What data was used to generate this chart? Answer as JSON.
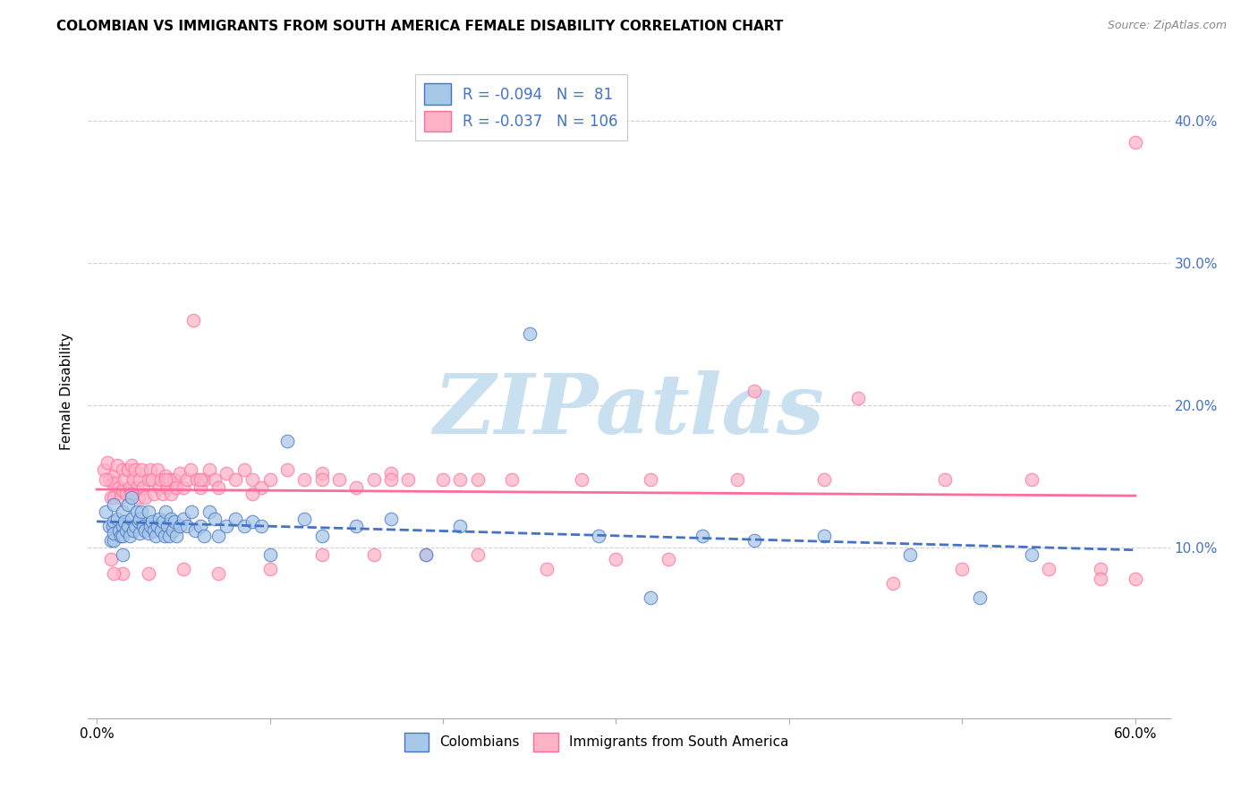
{
  "title": "COLOMBIAN VS IMMIGRANTS FROM SOUTH AMERICA FEMALE DISABILITY CORRELATION CHART",
  "source": "Source: ZipAtlas.com",
  "ylabel": "Female Disability",
  "xlim": [
    -0.005,
    0.62
  ],
  "ylim": [
    -0.02,
    0.44
  ],
  "yticks": [
    0.1,
    0.2,
    0.3,
    0.4
  ],
  "xtick_positions": [
    0.0,
    0.6
  ],
  "xtick_labels": [
    "0.0%",
    "60.0%"
  ],
  "ytick_labels": [
    "10.0%",
    "20.0%",
    "30.0%",
    "40.0%"
  ],
  "legend_labels": [
    "Colombians",
    "Immigrants from South America"
  ],
  "blue_color": "#A8C8E8",
  "pink_color": "#FFB3C6",
  "blue_edge_color": "#4472C4",
  "pink_edge_color": "#FF6B9D",
  "blue_line_color": "#4472C4",
  "pink_line_color": "#FF6B9D",
  "R_blue": -0.094,
  "N_blue": 81,
  "R_pink": -0.037,
  "N_pink": 106,
  "blue_scatter_x": [
    0.005,
    0.007,
    0.008,
    0.009,
    0.01,
    0.01,
    0.01,
    0.01,
    0.012,
    0.013,
    0.014,
    0.015,
    0.015,
    0.015,
    0.015,
    0.016,
    0.017,
    0.018,
    0.018,
    0.019,
    0.02,
    0.02,
    0.021,
    0.022,
    0.023,
    0.024,
    0.025,
    0.025,
    0.026,
    0.027,
    0.028,
    0.03,
    0.03,
    0.031,
    0.032,
    0.033,
    0.034,
    0.035,
    0.036,
    0.037,
    0.038,
    0.039,
    0.04,
    0.041,
    0.042,
    0.043,
    0.044,
    0.045,
    0.046,
    0.048,
    0.05,
    0.052,
    0.055,
    0.057,
    0.06,
    0.062,
    0.065,
    0.068,
    0.07,
    0.075,
    0.08,
    0.085,
    0.09,
    0.095,
    0.1,
    0.11,
    0.12,
    0.13,
    0.15,
    0.17,
    0.19,
    0.21,
    0.25,
    0.29,
    0.32,
    0.35,
    0.38,
    0.42,
    0.47,
    0.51,
    0.54
  ],
  "blue_scatter_y": [
    0.125,
    0.115,
    0.105,
    0.115,
    0.105,
    0.118,
    0.13,
    0.11,
    0.12,
    0.112,
    0.108,
    0.125,
    0.115,
    0.108,
    0.095,
    0.118,
    0.112,
    0.13,
    0.115,
    0.108,
    0.135,
    0.12,
    0.112,
    0.115,
    0.125,
    0.118,
    0.12,
    0.11,
    0.125,
    0.115,
    0.112,
    0.125,
    0.11,
    0.115,
    0.118,
    0.112,
    0.108,
    0.115,
    0.12,
    0.112,
    0.118,
    0.108,
    0.125,
    0.115,
    0.108,
    0.12,
    0.112,
    0.118,
    0.108,
    0.115,
    0.12,
    0.115,
    0.125,
    0.112,
    0.115,
    0.108,
    0.125,
    0.12,
    0.108,
    0.115,
    0.12,
    0.115,
    0.118,
    0.115,
    0.095,
    0.175,
    0.12,
    0.108,
    0.115,
    0.12,
    0.095,
    0.115,
    0.25,
    0.108,
    0.065,
    0.108,
    0.105,
    0.108,
    0.095,
    0.065,
    0.095
  ],
  "pink_scatter_x": [
    0.004,
    0.006,
    0.007,
    0.008,
    0.009,
    0.01,
    0.01,
    0.011,
    0.012,
    0.013,
    0.014,
    0.015,
    0.015,
    0.016,
    0.017,
    0.018,
    0.019,
    0.02,
    0.02,
    0.021,
    0.022,
    0.023,
    0.024,
    0.025,
    0.026,
    0.027,
    0.028,
    0.03,
    0.031,
    0.032,
    0.033,
    0.035,
    0.036,
    0.037,
    0.038,
    0.04,
    0.041,
    0.042,
    0.043,
    0.045,
    0.046,
    0.048,
    0.05,
    0.052,
    0.054,
    0.056,
    0.058,
    0.06,
    0.062,
    0.065,
    0.068,
    0.07,
    0.075,
    0.08,
    0.085,
    0.09,
    0.095,
    0.1,
    0.11,
    0.12,
    0.13,
    0.14,
    0.15,
    0.16,
    0.17,
    0.18,
    0.2,
    0.22,
    0.24,
    0.28,
    0.32,
    0.37,
    0.42,
    0.46,
    0.5,
    0.54,
    0.58,
    0.6,
    0.6,
    0.58,
    0.55,
    0.49,
    0.44,
    0.38,
    0.33,
    0.3,
    0.26,
    0.22,
    0.19,
    0.16,
    0.13,
    0.1,
    0.07,
    0.05,
    0.03,
    0.015,
    0.01,
    0.005,
    0.008,
    0.02,
    0.04,
    0.06,
    0.09,
    0.13,
    0.17,
    0.21
  ],
  "pink_scatter_y": [
    0.155,
    0.16,
    0.148,
    0.135,
    0.145,
    0.15,
    0.135,
    0.145,
    0.158,
    0.142,
    0.135,
    0.155,
    0.14,
    0.148,
    0.138,
    0.155,
    0.142,
    0.158,
    0.138,
    0.148,
    0.155,
    0.142,
    0.135,
    0.148,
    0.155,
    0.142,
    0.135,
    0.148,
    0.155,
    0.148,
    0.138,
    0.155,
    0.142,
    0.148,
    0.138,
    0.15,
    0.142,
    0.148,
    0.138,
    0.148,
    0.142,
    0.152,
    0.142,
    0.148,
    0.155,
    0.26,
    0.148,
    0.142,
    0.148,
    0.155,
    0.148,
    0.142,
    0.152,
    0.148,
    0.155,
    0.148,
    0.142,
    0.148,
    0.155,
    0.148,
    0.152,
    0.148,
    0.142,
    0.148,
    0.152,
    0.148,
    0.148,
    0.148,
    0.148,
    0.148,
    0.148,
    0.148,
    0.148,
    0.075,
    0.085,
    0.148,
    0.085,
    0.078,
    0.385,
    0.078,
    0.085,
    0.148,
    0.205,
    0.21,
    0.092,
    0.092,
    0.085,
    0.095,
    0.095,
    0.095,
    0.095,
    0.085,
    0.082,
    0.085,
    0.082,
    0.082,
    0.082,
    0.148,
    0.092,
    0.138,
    0.148,
    0.148,
    0.138,
    0.148,
    0.148,
    0.148
  ],
  "watermark_text": "ZIPatlas",
  "watermark_color": "#C8E0F0",
  "background_color": "#ffffff",
  "grid_color": "#cccccc",
  "title_fontsize": 11,
  "axis_label_fontsize": 11,
  "tick_fontsize": 11,
  "legend_fontsize": 12
}
